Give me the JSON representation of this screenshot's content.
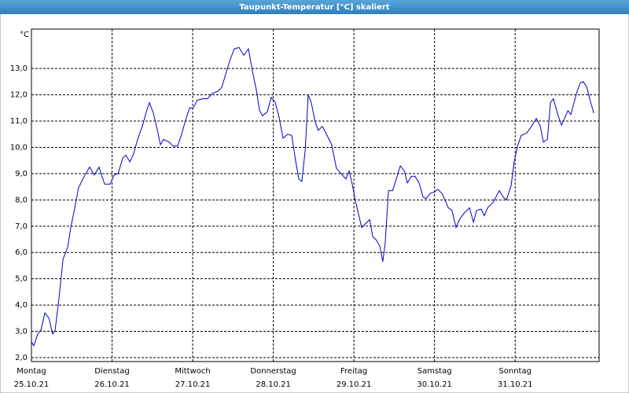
{
  "chart_data": {
    "type": "line",
    "title": "Taupunkt-Temperatur [°C] skaliert",
    "y_unit": "°C",
    "grid": true,
    "xlim": [
      0,
      169
    ],
    "ylim": [
      1.85,
      14.5
    ],
    "xticks": [
      {
        "value": 0,
        "label": "Montag",
        "date": "25.10.21"
      },
      {
        "value": 24,
        "label": "Dienstag",
        "date": "26.10.21"
      },
      {
        "value": 48,
        "label": "Mittwoch",
        "date": "27.10.21"
      },
      {
        "value": 72,
        "label": "Donnerstag",
        "date": "28.10.21"
      },
      {
        "value": 96,
        "label": "Freitag",
        "date": "29.10.21"
      },
      {
        "value": 120,
        "label": "Samstag",
        "date": "30.10.21"
      },
      {
        "value": 144,
        "label": "Sonntag",
        "date": "31.10.21"
      }
    ],
    "yticks": [
      {
        "value": 2,
        "label": "2,0"
      },
      {
        "value": 3,
        "label": "3,0"
      },
      {
        "value": 4,
        "label": "4,0"
      },
      {
        "value": 5,
        "label": "5,0"
      },
      {
        "value": 6,
        "label": "6,0"
      },
      {
        "value": 7,
        "label": "7,0"
      },
      {
        "value": 8,
        "label": "8,0"
      },
      {
        "value": 9,
        "label": "9,0"
      },
      {
        "value": 10,
        "label": "10,0"
      },
      {
        "value": 11,
        "label": "11,0"
      },
      {
        "value": 12,
        "label": "12,0"
      },
      {
        "value": 13,
        "label": "13,0"
      }
    ],
    "series": [
      {
        "color": "#0000c8",
        "x": [
          0,
          0.7,
          1.9,
          2.8,
          4.0,
          5.2,
          6.3,
          7.0,
          8.2,
          9.4,
          10.8,
          11.7,
          12.9,
          14.0,
          15.7,
          17.3,
          18.7,
          20.1,
          21.8,
          23.4,
          24.6,
          25.8,
          27.2,
          28.1,
          29.3,
          30.4,
          31.6,
          33.0,
          34.2,
          35.1,
          36.3,
          37.5,
          38.4,
          39.3,
          41.0,
          42.1,
          43.5,
          44.7,
          45.9,
          47.1,
          48.2,
          49.4,
          51.0,
          52.4,
          53.8,
          55.7,
          56.7,
          58.1,
          59.2,
          60.4,
          61.8,
          63.2,
          64.6,
          65.8,
          67.0,
          67.9,
          68.8,
          70.2,
          71.4,
          72.6,
          73.7,
          74.9,
          76.3,
          77.5,
          78.7,
          79.6,
          80.5,
          81.5,
          82.4,
          83.3,
          84.5,
          85.4,
          86.6,
          88.0,
          89.4,
          90.8,
          92.2,
          93.6,
          94.6,
          95.5,
          96.4,
          97.4,
          98.3,
          99.5,
          100.7,
          101.6,
          102.5,
          103.7,
          104.6,
          105.3,
          106.3,
          107.5,
          108.6,
          109.8,
          111.0,
          111.9,
          113.1,
          114.2,
          115.4,
          116.6,
          117.5,
          118.7,
          119.9,
          121.0,
          122.2,
          123.1,
          124.1,
          125.2,
          126.4,
          127.4,
          128.8,
          130.4,
          131.6,
          132.5,
          133.9,
          134.8,
          135.8,
          137.4,
          139.3,
          140.5,
          141.4,
          142.8,
          143.7,
          144.7,
          145.8,
          147.5,
          148.9,
          150.3,
          151.5,
          152.4,
          153.6,
          154.5,
          155.4,
          156.8,
          157.8,
          158.7,
          159.7,
          160.6,
          161.5,
          162.5,
          163.4,
          164.3,
          165.3,
          166.2,
          167.4
        ],
        "values": [
          2.6,
          2.45,
          2.9,
          3.05,
          3.7,
          3.5,
          2.9,
          3.0,
          4.25,
          5.75,
          6.2,
          6.95,
          7.7,
          8.45,
          8.9,
          9.25,
          8.95,
          9.25,
          8.6,
          8.6,
          8.95,
          9.0,
          9.6,
          9.7,
          9.45,
          9.75,
          10.3,
          10.8,
          11.35,
          11.7,
          11.3,
          10.65,
          10.1,
          10.3,
          10.2,
          10.05,
          10.05,
          10.5,
          11.05,
          11.5,
          11.5,
          11.8,
          11.85,
          11.85,
          12.05,
          12.15,
          12.3,
          12.9,
          13.35,
          13.75,
          13.8,
          13.5,
          13.75,
          12.9,
          12.15,
          11.4,
          11.2,
          11.35,
          11.9,
          11.7,
          11.15,
          10.35,
          10.5,
          10.45,
          9.45,
          8.8,
          8.7,
          9.9,
          12.0,
          11.7,
          10.95,
          10.65,
          10.8,
          10.45,
          10.1,
          9.2,
          9.0,
          8.8,
          9.1,
          8.6,
          8.0,
          7.45,
          6.95,
          7.1,
          7.25,
          6.6,
          6.5,
          6.25,
          5.65,
          6.35,
          8.35,
          8.35,
          8.8,
          9.3,
          9.1,
          8.65,
          8.9,
          8.9,
          8.65,
          8.1,
          8.05,
          8.25,
          8.3,
          8.4,
          8.25,
          8.0,
          7.7,
          7.6,
          6.95,
          7.25,
          7.5,
          7.7,
          7.15,
          7.6,
          7.65,
          7.4,
          7.7,
          7.9,
          8.35,
          8.1,
          8.0,
          8.55,
          9.45,
          10.05,
          10.45,
          10.55,
          10.8,
          11.1,
          10.8,
          10.2,
          10.3,
          11.7,
          11.85,
          11.2,
          10.85,
          11.1,
          11.4,
          11.25,
          11.7,
          12.15,
          12.45,
          12.5,
          12.3,
          11.85,
          11.3
        ]
      }
    ]
  }
}
